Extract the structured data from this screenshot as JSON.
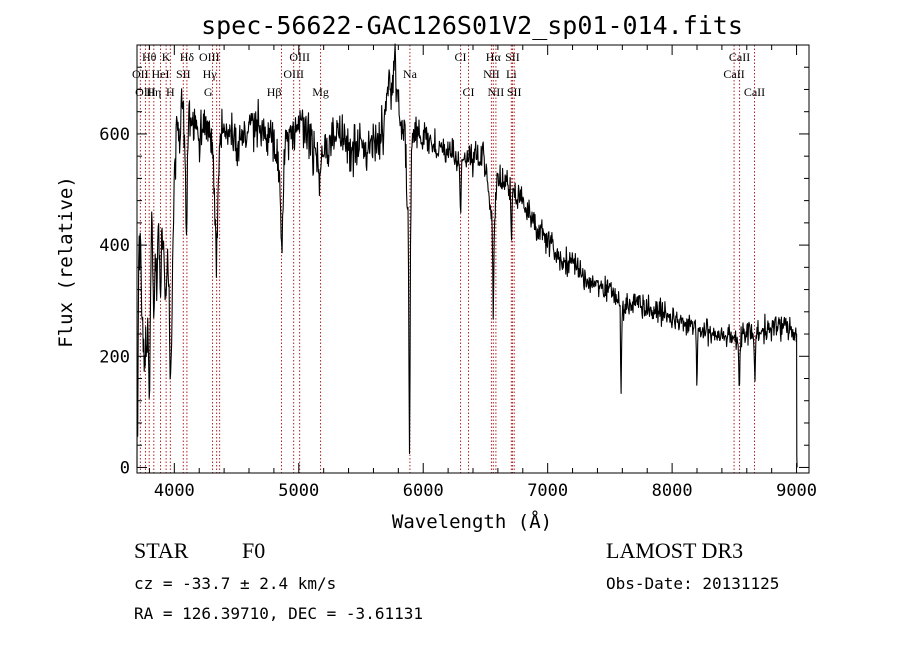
{
  "chart_data": {
    "type": "line",
    "title": "spec-56622-GAC126S01V2_sp01-014.fits",
    "xlabel": "Wavelength (Å)",
    "ylabel": "Flux (relative)",
    "xlim": [
      3700,
      9100
    ],
    "ylim": [
      -10,
      760
    ],
    "xticks": [
      4000,
      5000,
      6000,
      7000,
      8000,
      9000
    ],
    "yticks": [
      0,
      200,
      400,
      600
    ],
    "anchors": [
      [
        3700,
        360
      ],
      [
        3720,
        430
      ],
      [
        3740,
        440
      ],
      [
        3760,
        300
      ],
      [
        3780,
        380
      ],
      [
        3800,
        330
      ],
      [
        3820,
        450
      ],
      [
        3840,
        420
      ],
      [
        3860,
        350
      ],
      [
        3880,
        470
      ],
      [
        3900,
        440
      ],
      [
        3920,
        380
      ],
      [
        3940,
        420
      ],
      [
        3960,
        360
      ],
      [
        3980,
        300
      ],
      [
        4000,
        520
      ],
      [
        4020,
        600
      ],
      [
        4050,
        580
      ],
      [
        4080,
        630
      ],
      [
        4101,
        470
      ],
      [
        4120,
        600
      ],
      [
        4150,
        640
      ],
      [
        4200,
        580
      ],
      [
        4250,
        620
      ],
      [
        4300,
        590
      ],
      [
        4340,
        480
      ],
      [
        4380,
        600
      ],
      [
        4450,
        610
      ],
      [
        4500,
        580
      ],
      [
        4600,
        620
      ],
      [
        4700,
        600
      ],
      [
        4800,
        590
      ],
      [
        4861,
        500
      ],
      [
        4900,
        590
      ],
      [
        5000,
        620
      ],
      [
        5100,
        590
      ],
      [
        5175,
        520
      ],
      [
        5200,
        580
      ],
      [
        5300,
        600
      ],
      [
        5400,
        580
      ],
      [
        5500,
        570
      ],
      [
        5600,
        580
      ],
      [
        5650,
        590
      ],
      [
        5700,
        640
      ],
      [
        5750,
        690
      ],
      [
        5780,
        700
      ],
      [
        5800,
        640
      ],
      [
        5850,
        610
      ],
      [
        5892,
        360
      ],
      [
        5910,
        600
      ],
      [
        6000,
        590
      ],
      [
        6100,
        580
      ],
      [
        6200,
        570
      ],
      [
        6300,
        550
      ],
      [
        6400,
        560
      ],
      [
        6500,
        550
      ],
      [
        6563,
        430
      ],
      [
        6600,
        520
      ],
      [
        6700,
        500
      ],
      [
        6800,
        480
      ],
      [
        6900,
        440
      ],
      [
        7000,
        410
      ],
      [
        7100,
        370
      ],
      [
        7200,
        370
      ],
      [
        7300,
        340
      ],
      [
        7400,
        330
      ],
      [
        7500,
        320
      ],
      [
        7600,
        290
      ],
      [
        7700,
        300
      ],
      [
        7800,
        290
      ],
      [
        7900,
        280
      ],
      [
        8000,
        270
      ],
      [
        8100,
        260
      ],
      [
        8200,
        250
      ],
      [
        8300,
        240
      ],
      [
        8400,
        240
      ],
      [
        8500,
        235
      ],
      [
        8600,
        240
      ],
      [
        8700,
        245
      ],
      [
        8800,
        250
      ],
      [
        8900,
        255
      ],
      [
        9000,
        240
      ]
    ],
    "dips": [
      [
        3740,
        140,
        12
      ],
      [
        3760,
        120,
        12
      ],
      [
        3780,
        150,
        10
      ],
      [
        3800,
        200,
        10
      ],
      [
        3835,
        130,
        10
      ],
      [
        3889,
        150,
        10
      ],
      [
        3935,
        120,
        10
      ],
      [
        3970,
        160,
        10
      ],
      [
        4101,
        110,
        12
      ],
      [
        4340,
        100,
        12
      ],
      [
        4861,
        110,
        14
      ],
      [
        5890,
        330,
        6
      ],
      [
        6300,
        90,
        6
      ],
      [
        6563,
        150,
        6
      ],
      [
        6710,
        100,
        6
      ],
      [
        7590,
        150,
        6
      ],
      [
        8200,
        90,
        6
      ],
      [
        8540,
        80,
        8
      ],
      [
        8665,
        70,
        8
      ],
      [
        3705,
        340,
        6
      ]
    ],
    "spikes": [
      [
        4110,
        120,
        10
      ],
      [
        4060,
        90,
        10
      ],
      [
        5770,
        60,
        10
      ],
      [
        5720,
        40,
        12
      ]
    ],
    "noise_seed": 20131125,
    "lines": [
      {
        "label": "Hθ",
        "x": 3798,
        "row": 0,
        "anchor": "middle"
      },
      {
        "label": "K",
        "x": 3934,
        "row": 0,
        "anchor": "middle"
      },
      {
        "label": "Hδ",
        "x": 4101,
        "row": 0,
        "anchor": "middle"
      },
      {
        "label": "OIII",
        "x": 4364,
        "row": 0,
        "anchor": "end"
      },
      {
        "label": "OIII",
        "x": 5007,
        "row": 0,
        "anchor": "middle"
      },
      {
        "label": "CI",
        "x": 6300,
        "row": 0,
        "anchor": "middle"
      },
      {
        "label": "Hα",
        "x": 6563,
        "row": 0,
        "anchor": "middle"
      },
      {
        "label": "SII",
        "x": 6717,
        "row": 0,
        "anchor": "middle"
      },
      {
        "label": "CaII",
        "x": 8542,
        "row": 0,
        "anchor": "middle"
      },
      {
        "label": "OII",
        "x": 3727,
        "row": 1,
        "anchor": "middle"
      },
      {
        "label": "HeI",
        "x": 3889,
        "row": 1,
        "anchor": "middle"
      },
      {
        "label": "SII",
        "x": 4072,
        "row": 1,
        "anchor": "middle"
      },
      {
        "label": "Hγ",
        "x": 4340,
        "row": 1,
        "anchor": "end"
      },
      {
        "label": "OIII",
        "x": 4959,
        "row": 1,
        "anchor": "middle"
      },
      {
        "label": "Na",
        "x": 5893,
        "row": 1,
        "anchor": "middle"
      },
      {
        "label": "NII",
        "x": 6548,
        "row": 1,
        "anchor": "middle"
      },
      {
        "label": "Li",
        "x": 6708,
        "row": 1,
        "anchor": "middle"
      },
      {
        "label": "CaII",
        "x": 8498,
        "row": 1,
        "anchor": "middle"
      },
      {
        "label": "OIII",
        "x": 3768,
        "row": 2,
        "anchor": "middle"
      },
      {
        "label": "Hη",
        "x": 3835,
        "row": 2,
        "anchor": "middle"
      },
      {
        "label": "H",
        "x": 3968,
        "row": 2,
        "anchor": "middle"
      },
      {
        "label": "G",
        "x": 4307,
        "row": 2,
        "anchor": "end"
      },
      {
        "label": "Hβ",
        "x": 4861,
        "row": 2,
        "anchor": "end"
      },
      {
        "label": "Mg",
        "x": 5175,
        "row": 2,
        "anchor": "middle"
      },
      {
        "label": "CI",
        "x": 6364,
        "row": 2,
        "anchor": "middle"
      },
      {
        "label": "NII",
        "x": 6584,
        "row": 2,
        "anchor": "middle"
      },
      {
        "label": "SII",
        "x": 6731,
        "row": 2,
        "anchor": "middle"
      },
      {
        "label": "CaII",
        "x": 8662,
        "row": 2,
        "anchor": "middle"
      }
    ]
  },
  "info": {
    "object_class": "STAR",
    "subclass": "F0",
    "survey": "LAMOST DR3",
    "cz": "cz = -33.7 ± 2.4 km/s",
    "obs_date": "Obs-Date: 20131125",
    "coords": "RA = 126.39710, DEC =  -3.61131"
  }
}
